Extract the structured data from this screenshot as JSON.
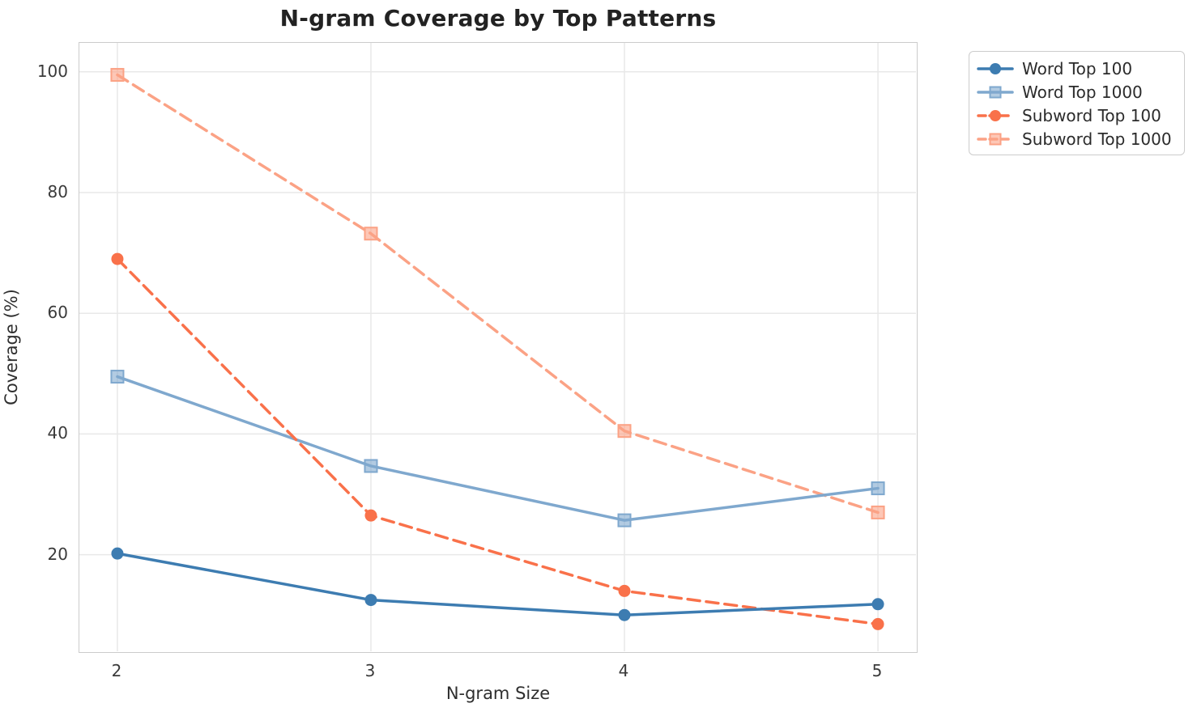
{
  "chart_data": {
    "type": "line",
    "title": "N-gram Coverage by Top Patterns",
    "xlabel": "N-gram Size",
    "ylabel": "Coverage (%)",
    "x": [
      2,
      3,
      4,
      5
    ],
    "xtick_labels": [
      "2",
      "3",
      "4",
      "5"
    ],
    "ytick_values": [
      20,
      40,
      60,
      80,
      100
    ],
    "ytick_labels": [
      "20",
      "40",
      "60",
      "80",
      "100"
    ],
    "xlim": [
      1.85,
      5.15
    ],
    "ylim": [
      4,
      104.8
    ],
    "grid": true,
    "legend_position": "outside-upper-right",
    "series": [
      {
        "name": "Word Top 100",
        "values": [
          20.2,
          12.5,
          10.0,
          11.8
        ],
        "color": "#3d7cb1",
        "marker": "circle",
        "line_style": "solid"
      },
      {
        "name": "Word Top 1000",
        "values": [
          49.5,
          34.7,
          25.7,
          31.0
        ],
        "color": "#7fa8ce",
        "marker": "square",
        "line_style": "solid"
      },
      {
        "name": "Subword Top 100",
        "values": [
          69.0,
          26.5,
          14.0,
          8.5
        ],
        "color": "#f9714a",
        "marker": "circle",
        "line_style": "dashed"
      },
      {
        "name": "Subword Top 1000",
        "values": [
          99.5,
          73.2,
          40.5,
          27.0
        ],
        "color": "#fba285",
        "marker": "square",
        "line_style": "dashed"
      }
    ],
    "colors": {
      "grid": "#e8e8e8",
      "spine": "#cccccc",
      "text": "#2b2b2b"
    }
  }
}
